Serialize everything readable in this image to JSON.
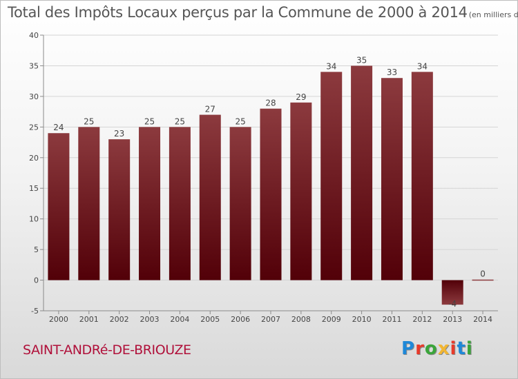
{
  "header": {
    "title": "Total des Impôts Locaux perçus par la Commune de 2000 à 2014",
    "subtitle": "(en milliers d'€)"
  },
  "footer": {
    "commune": "SAINT-ANDRé-DE-BRIOUZE",
    "logo": "Proxiti",
    "logo_colors": [
      "#1e88d8",
      "#e83a2a",
      "#3aa53a",
      "#f2b632",
      "#e83a2a",
      "#1e88d8",
      "#3aa53a"
    ]
  },
  "colors": {
    "bar_top": "#8c3a3e",
    "bar_bottom": "#520008",
    "grid": "#d4d4d4",
    "axis": "#8a8a8a",
    "text": "#444444",
    "commune": "#b0103a"
  },
  "chart_data": {
    "type": "bar",
    "categories": [
      "2000",
      "2001",
      "2002",
      "2003",
      "2004",
      "2005",
      "2006",
      "2007",
      "2008",
      "2009",
      "2010",
      "2011",
      "2012",
      "2013",
      "2014"
    ],
    "values": [
      24,
      25,
      23,
      25,
      25,
      27,
      25,
      28,
      29,
      34,
      35,
      33,
      34,
      -4,
      0
    ],
    "data_labels": [
      "24",
      "25",
      "23",
      "25",
      "25",
      "27",
      "25",
      "28",
      "29",
      "34",
      "35",
      "33",
      "34",
      "-4",
      "0"
    ],
    "ylim": [
      -5,
      40
    ],
    "yticks": [
      -5,
      0,
      5,
      10,
      15,
      20,
      25,
      30,
      35,
      40
    ],
    "ytick_labels": [
      "-5",
      "0",
      "5",
      "10",
      "15",
      "20",
      "25",
      "30",
      "35",
      "40"
    ],
    "grid": true,
    "legend": false
  }
}
